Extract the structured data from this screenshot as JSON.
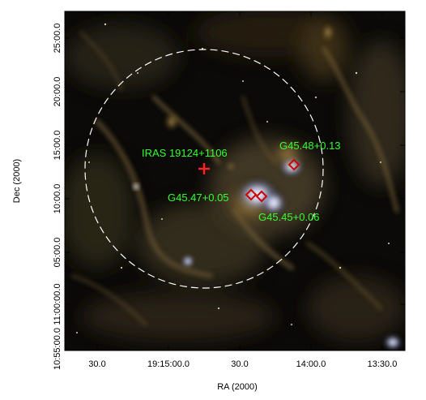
{
  "axes": {
    "x_label": "RA (2000)",
    "y_label": "Dec (2000)",
    "x_ticks": [
      "30.0",
      "19:15:00.0",
      "30.0",
      "14:00.0",
      "13:30.0"
    ],
    "y_ticks": [
      "10:55:00.0",
      "11:00:00.0",
      "05:00.0",
      "10:00.0",
      "15:00.0",
      "20:00.0",
      "25:00.0"
    ]
  },
  "sources": [
    {
      "label": "IRAS 19124+1106",
      "marker": "plus-marker",
      "color": "#ff2222"
    },
    {
      "label": "G45.48+0.13",
      "marker": "diamond-marker",
      "color": "#cc0000"
    },
    {
      "label": "G45.47+0.05",
      "marker": "diamond-marker",
      "color": "#cc0000"
    },
    {
      "label": "G45.45+0.06",
      "marker": "diamond-marker",
      "color": "#cc0000"
    }
  ],
  "colors": {
    "label_text": "#33ff33",
    "circle": "#ffffff",
    "marker": "#cc0000"
  }
}
